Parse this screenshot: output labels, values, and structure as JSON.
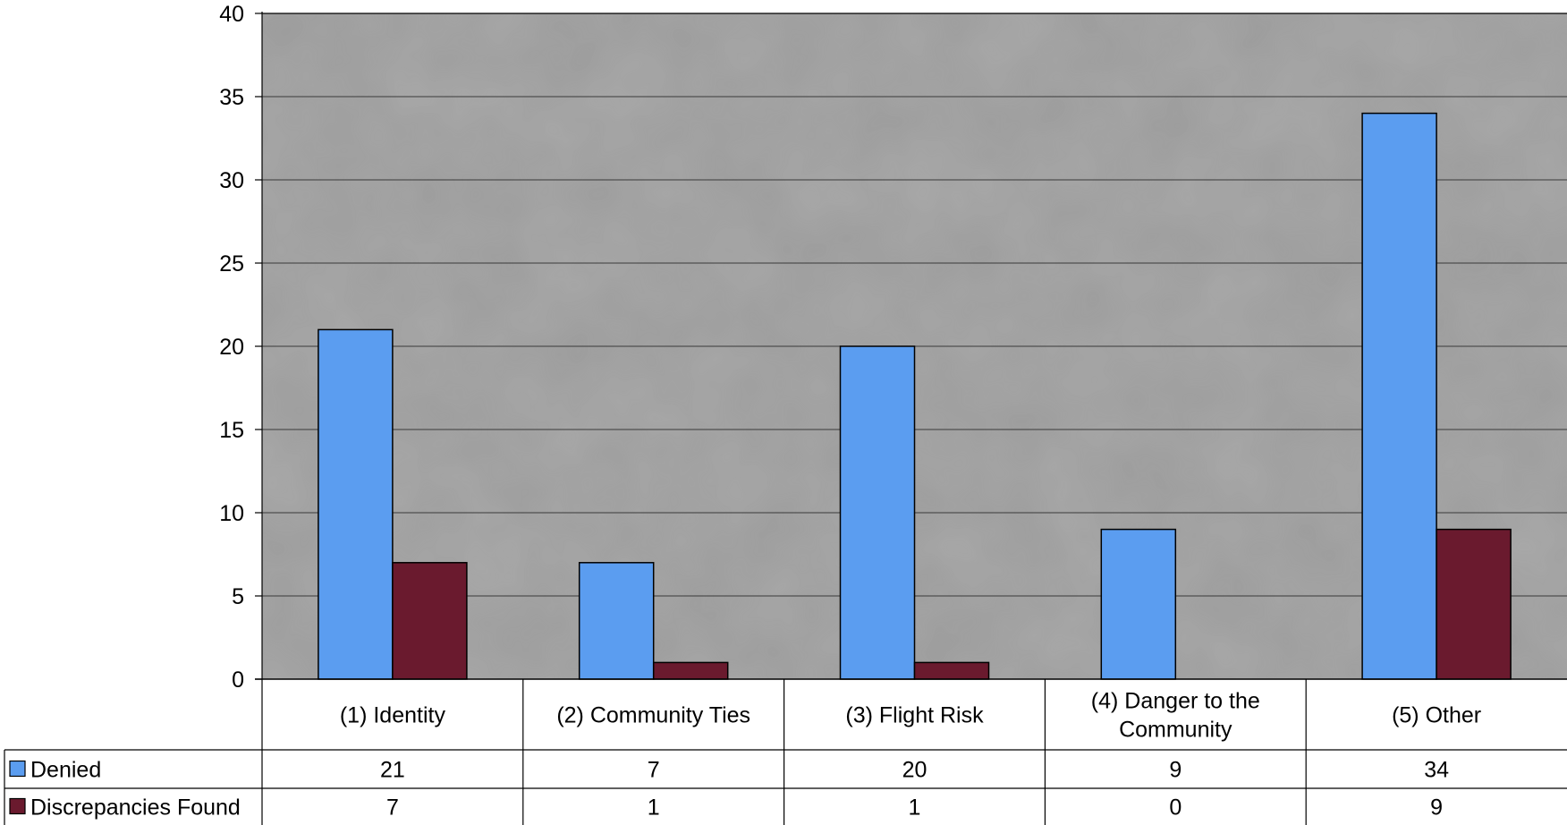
{
  "chart_data": {
    "type": "bar",
    "categories": [
      "(1) Identity",
      "(2) Community Ties",
      "(3) Flight Risk",
      "(4) Danger to the Community",
      "(5) Other"
    ],
    "series": [
      {
        "name": "Denied",
        "values": [
          21,
          7,
          20,
          9,
          34
        ],
        "color": "#5b9df0"
      },
      {
        "name": "Discrepancies Found",
        "values": [
          7,
          1,
          1,
          0,
          9
        ],
        "color": "#6a1a2e"
      }
    ],
    "ylim": [
      0,
      40
    ],
    "yticks": [
      "0",
      "5",
      "10",
      "15",
      "20",
      "25",
      "30",
      "35",
      "40"
    ],
    "grid": true,
    "data_table": true,
    "plot_background": "#9c9c9c"
  }
}
